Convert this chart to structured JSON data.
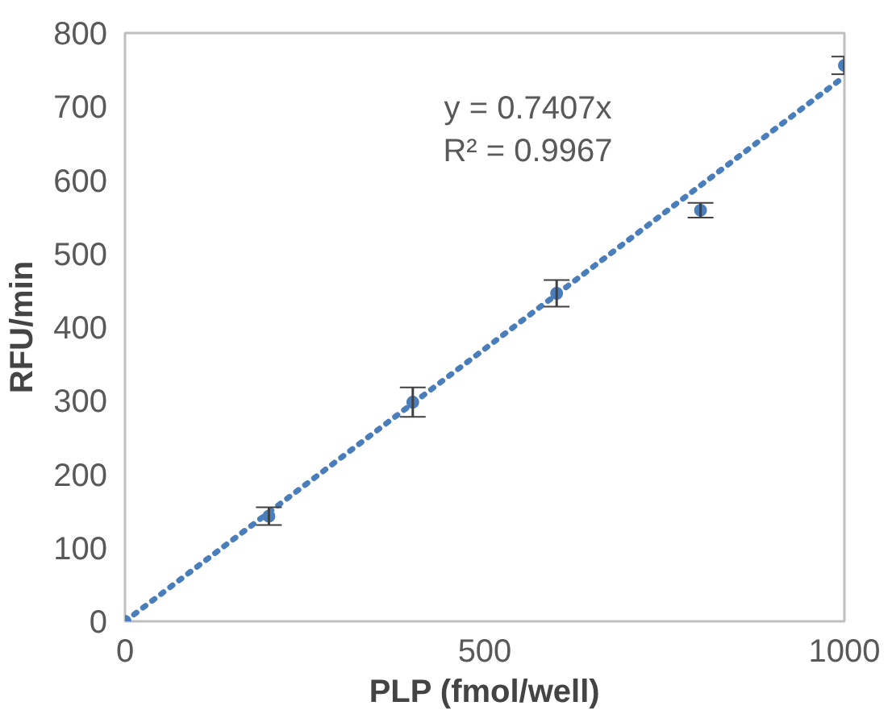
{
  "chart_data": {
    "type": "scatter",
    "xlabel": "PLP (fmol/well)",
    "ylabel": "RFU/min",
    "annotations": [
      "y = 0.7407x\nR² = 0.9967"
    ],
    "xlim": [
      0,
      1000
    ],
    "ylim": [
      0,
      800
    ],
    "xticks": [
      0,
      500,
      1000
    ],
    "yticks": [
      0,
      100,
      200,
      300,
      400,
      500,
      600,
      700,
      800
    ],
    "grid": false,
    "series": [
      {
        "color": "#4a7ebb",
        "marker": "circle",
        "x": [
          0,
          200,
          400,
          600,
          800,
          1000
        ],
        "values": [
          0,
          143,
          298,
          446,
          559,
          756
        ],
        "errors": [
          null,
          12,
          20,
          18,
          10,
          12
        ]
      },
      {
        "type": "line",
        "color": "#4a7ebb",
        "line_style": "dotted",
        "x": [
          0,
          1000
        ],
        "values": [
          0,
          741
        ]
      }
    ]
  }
}
